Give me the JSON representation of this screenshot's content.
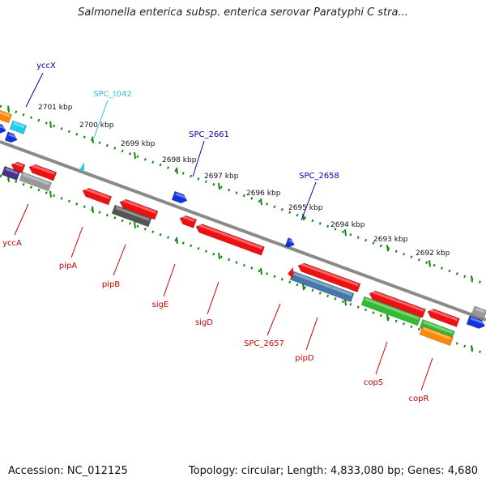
{
  "title": "Salmonella enterica subsp. enterica serovar Paratyphi C stra...",
  "footer": {
    "accession": "Accession: NC_012125",
    "stats": "Topology: circular; Length: 4,833,080 bp; Genes: 4,680"
  },
  "kbp_ticks": [
    "2701 kbp",
    "2700 kbp",
    "2699 kbp",
    "2698 kbp",
    "2697 kbp",
    "2696 kbp",
    "2695 kbp",
    "2694 kbp",
    "2693 kbp",
    "2692 kbp"
  ],
  "gene_labels": [
    {
      "name": "yccX",
      "color": "#0000aa"
    },
    {
      "name": "SPC_t042",
      "color": "#33bbdd"
    },
    {
      "name": "SPC_2661",
      "color": "#0000aa"
    },
    {
      "name": "SPC_2658",
      "color": "#0000aa"
    },
    {
      "name": "yccA",
      "color": "#cc0000"
    },
    {
      "name": "pipA",
      "color": "#cc0000"
    },
    {
      "name": "pipB",
      "color": "#cc0000"
    },
    {
      "name": "sigE",
      "color": "#cc0000"
    },
    {
      "name": "sigD",
      "color": "#cc0000"
    },
    {
      "name": "SPC_2657",
      "color": "#cc0000"
    },
    {
      "name": "pipD",
      "color": "#cc0000"
    },
    {
      "name": "copS",
      "color": "#cc0000"
    },
    {
      "name": "copR",
      "color": "#cc0000"
    }
  ],
  "feature_colors": {
    "cds": "#ee1111",
    "trna": "#22ccee",
    "gene_forward": "#1133dd",
    "grey": "#999999",
    "dark_grey": "#555555",
    "steel_blue": "#4477aa",
    "green": "#33bb33",
    "orange": "#ff8800",
    "purple": "#443388",
    "backbone": "#8a8a8a",
    "scale_dots": "#118811"
  }
}
